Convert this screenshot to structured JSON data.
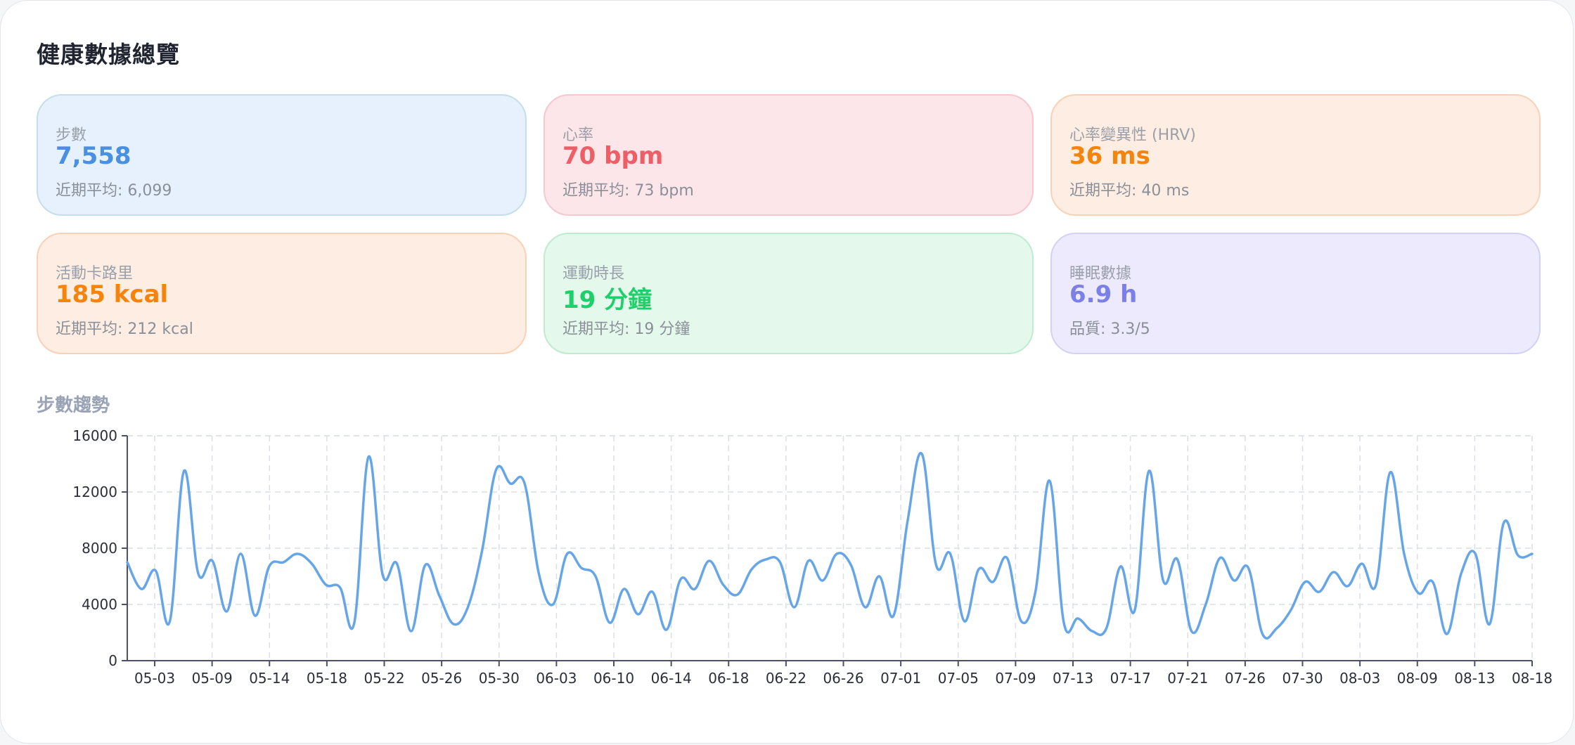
{
  "page": {
    "title": "健康數據總覽"
  },
  "cards": {
    "steps": {
      "label": "步數",
      "value": "7,558",
      "sub": "近期平均: 6,099",
      "color": "#4a90e2"
    },
    "heart": {
      "label": "心率",
      "value": "70 bpm",
      "sub": "近期平均: 73 bpm",
      "color": "#ec5f67"
    },
    "hrv": {
      "label": "心率變異性 (HRV)",
      "value": "36 ms",
      "sub": "近期平均: 40 ms",
      "color": "#f5840c"
    },
    "calories": {
      "label": "活動卡路里",
      "value": "185 kcal",
      "sub": "近期平均: 212 kcal",
      "color": "#f5840c"
    },
    "exercise": {
      "label": "運動時長",
      "value": "19 分鐘",
      "sub": "近期平均: 19 分鐘",
      "color": "#1fcf6a"
    },
    "sleep": {
      "label": "睡眠數據",
      "value": "6.9 h",
      "sub": "品質: 3.3/5",
      "color": "#7b80e8"
    }
  },
  "chart_section": {
    "title": "步數趨勢"
  },
  "chart_data": {
    "type": "line",
    "title": "",
    "xlabel": "",
    "ylabel": "",
    "ylim": [
      0,
      16000
    ],
    "y_ticks": [
      0,
      4000,
      8000,
      12000,
      16000
    ],
    "x_tick_labels": [
      "05-03",
      "05-09",
      "05-14",
      "05-18",
      "05-22",
      "05-26",
      "05-30",
      "06-03",
      "06-10",
      "06-14",
      "06-18",
      "06-22",
      "06-26",
      "07-01",
      "07-05",
      "07-09",
      "07-13",
      "07-17",
      "07-21",
      "07-26",
      "07-30",
      "08-03",
      "08-09",
      "08-13",
      "08-18"
    ],
    "grid": true,
    "line_color": "#66a6e8",
    "series": [
      {
        "values": [
          7000,
          5100,
          6400,
          2800,
          13500,
          6200,
          7100,
          3500,
          7600,
          3200,
          6700,
          7000,
          7600,
          6900,
          5400,
          5200,
          2700,
          14500,
          6100,
          6900,
          2100,
          6800,
          4600,
          2600,
          3800,
          7800,
          13600,
          12600,
          12600,
          6200,
          4000,
          7600,
          6600,
          6000,
          2700,
          5100,
          3300,
          4900,
          2200,
          5800,
          5100,
          7100,
          5400,
          4700,
          6500,
          7200,
          7000,
          3800,
          7100,
          5700,
          7600,
          6800,
          3800,
          6000,
          3200,
          10000,
          14700,
          6800,
          7600,
          2800,
          6500,
          5600,
          7300,
          2800,
          4900,
          12800,
          2700,
          3000,
          2100,
          2300,
          6700,
          3600,
          13500,
          5700,
          7200,
          2100,
          4000,
          7300,
          5700,
          6600,
          1900,
          2300,
          3600,
          5600,
          4900,
          6300,
          5300,
          6900,
          5400,
          13400,
          7500,
          4800,
          5600,
          1900,
          6200,
          7600,
          2600,
          9800,
          7500,
          7600
        ]
      }
    ]
  }
}
